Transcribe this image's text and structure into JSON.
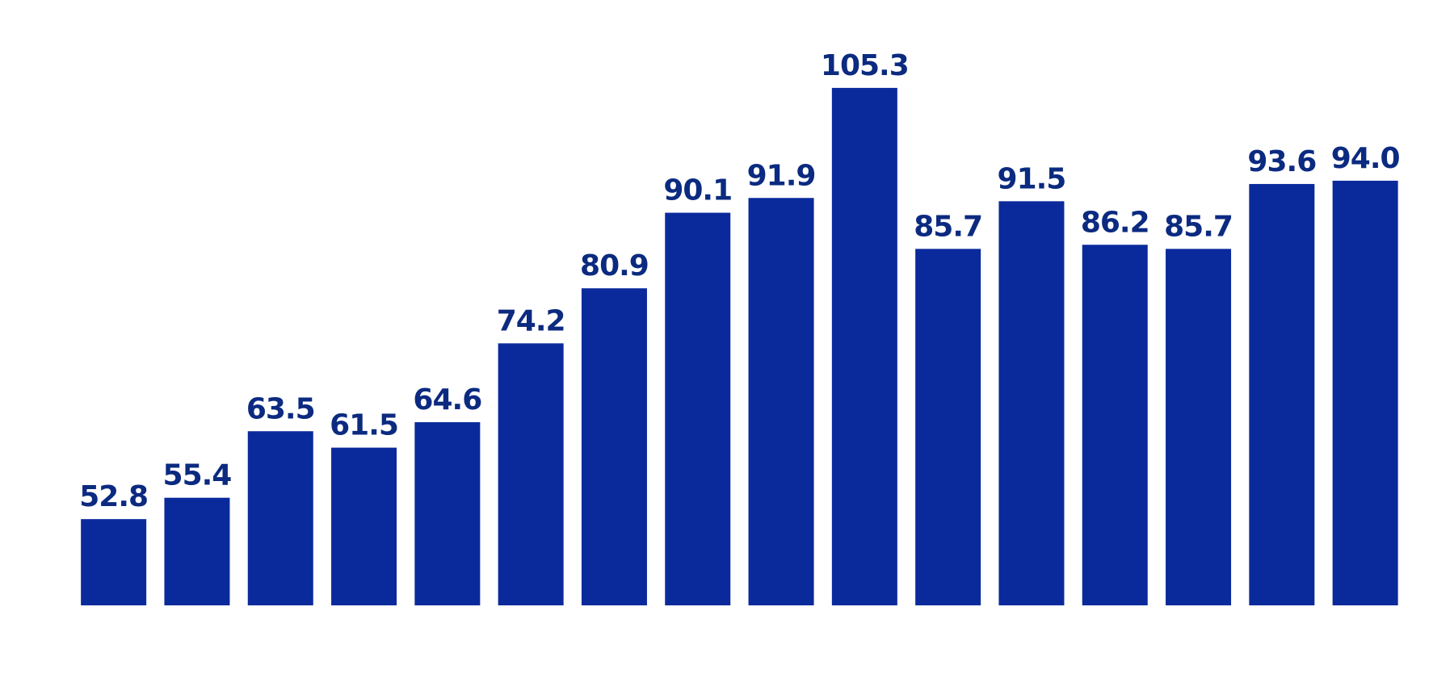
{
  "chart_data": {
    "type": "bar",
    "categories": [
      null,
      null,
      null,
      null,
      null,
      null,
      null,
      null,
      null,
      null,
      null,
      null,
      null,
      null,
      null,
      null
    ],
    "values": [
      52.8,
      55.4,
      63.5,
      61.5,
      64.6,
      74.2,
      80.9,
      90.1,
      91.9,
      105.3,
      85.7,
      91.5,
      86.2,
      85.7,
      93.6,
      94.0
    ],
    "value_labels": [
      "52.8",
      "55.4",
      "63.5",
      "61.5",
      "64.6",
      "74.2",
      "80.9",
      "90.1",
      "91.9",
      "105.3",
      "85.7",
      "91.5",
      "86.2",
      "85.7",
      "93.6",
      "94.0"
    ],
    "color": "#0a2a9c",
    "ylim": [
      42.3,
      116
    ]
  }
}
